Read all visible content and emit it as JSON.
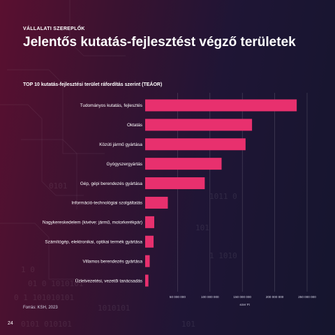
{
  "header": {
    "kicker": "VÁLLALATI SZEREPLŐK",
    "title": "Jelentős kutatás-fejlesztést végző területek"
  },
  "chart_data": {
    "type": "bar",
    "orientation": "horizontal",
    "title": "TOP 10 kutatás-fejlesztési terület ráfordítás szerint (TEÁOR)",
    "categories": [
      "Tudományos kutatás, fejlesztés",
      "Oktatás",
      "Közúti jármű gyártása",
      "Gyógyszergyártás",
      "Gép, gépi berendezés gyártása",
      "Információ-technológiai szolgáltatás",
      "Nagykereskedelem (kivéve: jármű, motorkerékpár)",
      "Számítógép, elektronikai, optikai termék gyártása",
      "Villamos berendezés gyártása",
      "Üzletvezetési, vezetői tanácsadás"
    ],
    "values": [
      234000000,
      165000000,
      155000000,
      118000000,
      92000000,
      35000000,
      14000000,
      13000000,
      7000000,
      5000000
    ],
    "xlim": [
      0,
      250000000
    ],
    "ticks": [
      50000000,
      100000000,
      150000000,
      200000000,
      250000000
    ],
    "tick_labels": [
      "50 000 000",
      "100 000 000",
      "150 000 000",
      "200 000 000",
      "250 000 000"
    ],
    "unit": "ezer Ft",
    "grid": true,
    "bar_color": "#e8306e"
  },
  "footer": {
    "source": "Forrás: KSH, 2023",
    "page_number": "24"
  }
}
